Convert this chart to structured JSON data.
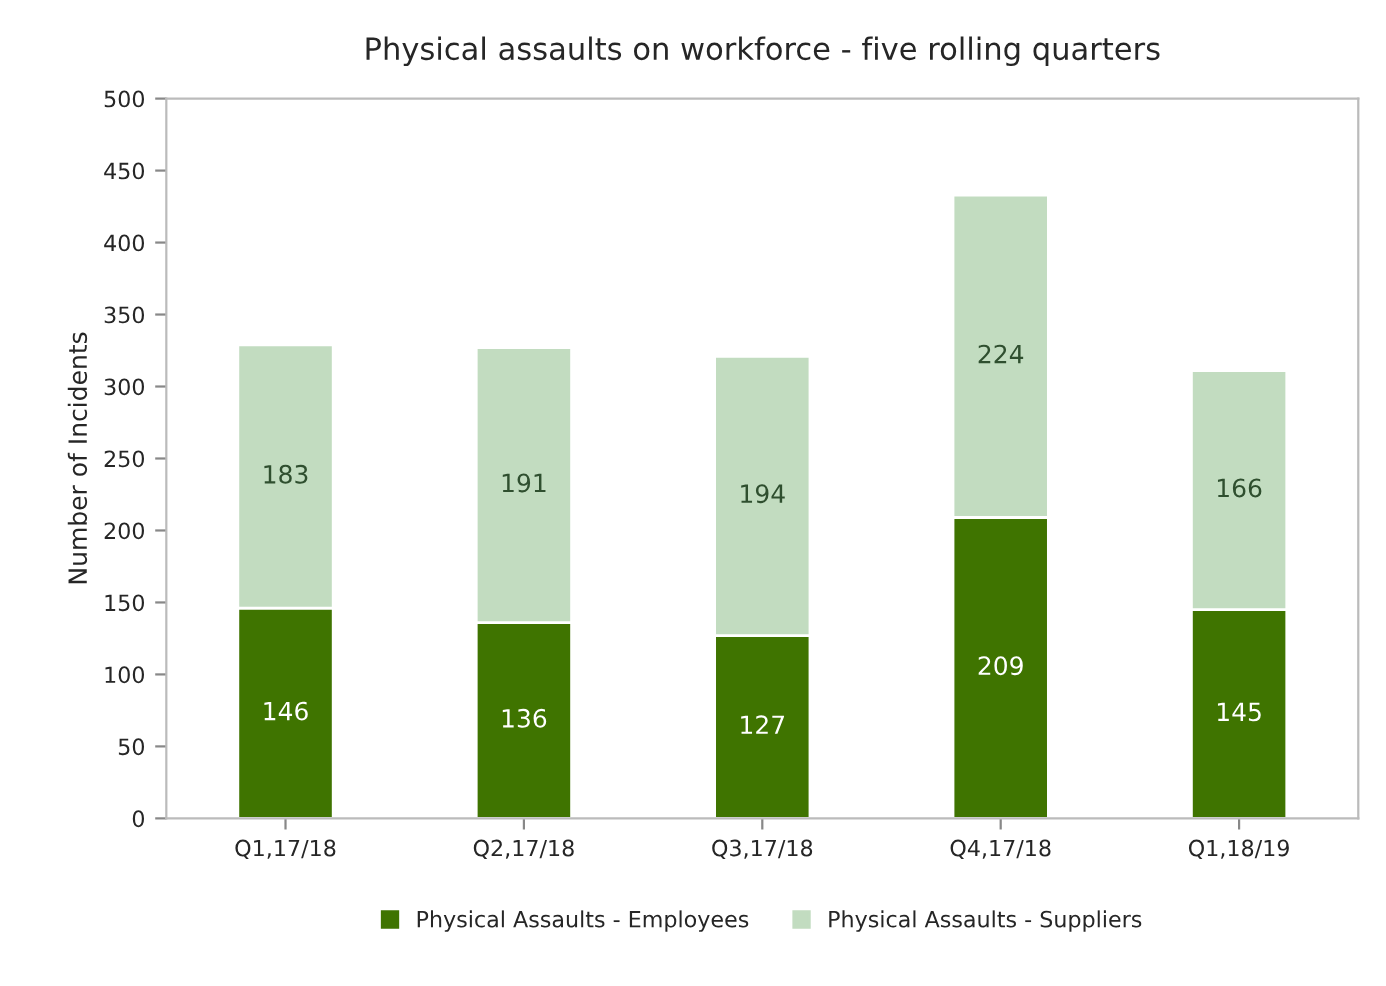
{
  "chart_data": {
    "type": "bar",
    "title": "Physical assaults on workforce - five rolling quarters",
    "ylabel": "Number of Incidents",
    "categories": [
      "Q1,17/18",
      "Q2,17/18",
      "Q3,17/18",
      "Q4,17/18",
      "Q1,18/19"
    ],
    "series": [
      {
        "name": "Physical Assaults - Employees",
        "color": "#3f7400",
        "values": [
          146,
          136,
          127,
          209,
          145
        ]
      },
      {
        "name": "Physical Assaults - Suppliers",
        "color": "#c2dcc0",
        "values": [
          183,
          191,
          194,
          224,
          166
        ]
      }
    ],
    "stacked": true,
    "data_labels": true,
    "ylim": [
      0,
      500
    ],
    "yticks": [
      0,
      50,
      100,
      150,
      200,
      250,
      300,
      350,
      400,
      450,
      500
    ],
    "grid": false,
    "legend": "bottom"
  }
}
